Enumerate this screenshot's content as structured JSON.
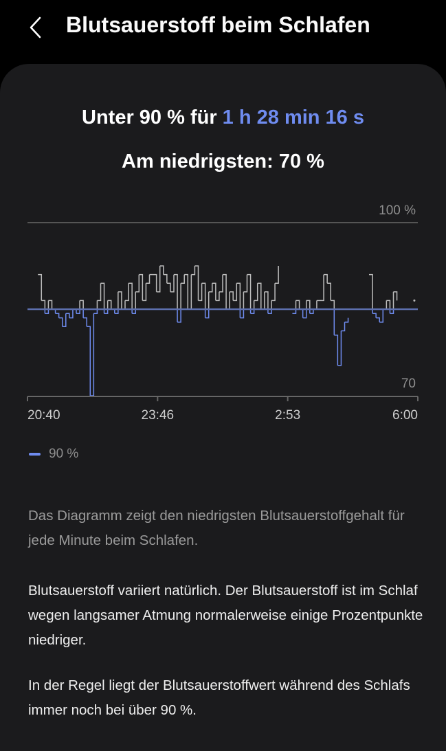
{
  "header": {
    "title": "Blutsauerstoff beim Schlafen",
    "back_icon": "chevron-left-icon"
  },
  "summary": {
    "below_prefix": "Unter 90 % für ",
    "below_duration": "1 h 28 min 16 s",
    "lowest": "Am niedrigsten: 70 %"
  },
  "colors": {
    "accent": "#6f8cf0",
    "line_above": "#bdbdbd",
    "background": "#000000",
    "card": "#1b1b1d"
  },
  "chart_data": {
    "type": "line",
    "title": "",
    "xlabel": "",
    "ylabel": "",
    "x_start": "20:40",
    "x_end": "6:00",
    "interval_minutes": 5,
    "x_tick_labels": [
      "20:40",
      "23:46",
      "2:53",
      "6:00"
    ],
    "y_tick_labels": {
      "top": "100 %",
      "bottom": "70"
    },
    "ylim": [
      70,
      100
    ],
    "threshold": 90,
    "legend": [
      {
        "label": "90 %",
        "color": "#6f8cf0"
      }
    ],
    "legend_position": "bottom-left",
    "values": [
      null,
      null,
      null,
      94,
      91,
      89,
      91,
      90,
      89,
      88,
      86,
      89,
      88,
      90,
      89,
      91,
      88,
      86,
      70,
      89,
      91,
      93,
      89,
      91,
      90,
      89,
      92,
      90,
      91,
      93,
      89,
      92,
      94,
      91,
      93,
      94,
      94,
      92,
      95,
      94,
      93,
      92,
      94,
      87,
      93,
      94,
      90,
      94,
      95,
      91,
      93,
      88,
      92,
      93,
      91,
      92,
      94,
      90,
      92,
      91,
      93,
      88,
      92,
      94,
      89,
      91,
      93,
      90,
      92,
      89,
      91,
      93,
      95,
      null,
      null,
      null,
      89,
      91,
      90,
      88,
      91,
      89,
      90,
      91,
      91,
      94,
      93,
      91,
      84,
      77,
      85,
      87,
      88,
      null,
      null,
      null,
      null,
      null,
      94,
      89,
      88,
      87,
      90,
      91,
      89,
      92,
      91,
      null,
      null,
      null,
      null,
      91,
      null
    ]
  },
  "body": {
    "note": "Das Diagramm zeigt den niedrigsten Blutsauerstoffgehalt für jede Minute beim Schlafen.",
    "para1": "Blutsauerstoff variiert natürlich. Der Blutsauerstoff ist im Schlaf wegen langsamer Atmung normalerweise einige Prozentpunkte niedriger.",
    "para2": "In der Regel liegt der Blutsauerstoffwert während des Schlafs immer noch bei über 90 %."
  }
}
